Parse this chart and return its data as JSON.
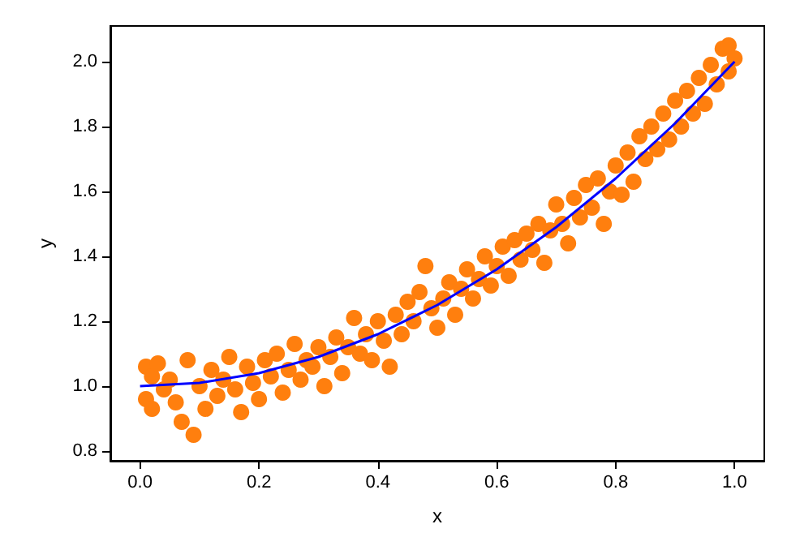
{
  "chart_data": {
    "type": "scatter",
    "xlabel": "x",
    "ylabel": "y",
    "xlim": [
      -0.05,
      1.05
    ],
    "ylim": [
      0.77,
      2.11
    ],
    "xticks": [
      {
        "value": 0,
        "label": "0.0"
      },
      0.2,
      0.4,
      0.6,
      0.8,
      {
        "value": 1,
        "label": "1.0"
      }
    ],
    "yticks": [
      0.8,
      {
        "value": 1,
        "label": "1.0"
      },
      1.2,
      1.4,
      1.6,
      1.8,
      {
        "value": 2,
        "label": "2.0"
      }
    ],
    "grid": false,
    "marker": "circle",
    "series": [
      {
        "color": "#ff7f0e",
        "x": [
          0.01,
          0.01,
          0.02,
          0.02,
          0.03,
          0.04,
          0.05,
          0.06,
          0.07,
          0.08,
          0.09,
          0.1,
          0.11,
          0.12,
          0.13,
          0.14,
          0.15,
          0.16,
          0.17,
          0.18,
          0.19,
          0.2,
          0.21,
          0.22,
          0.23,
          0.24,
          0.25,
          0.26,
          0.27,
          0.28,
          0.29,
          0.3,
          0.31,
          0.32,
          0.33,
          0.34,
          0.35,
          0.36,
          0.37,
          0.38,
          0.39,
          0.4,
          0.41,
          0.42,
          0.43,
          0.44,
          0.45,
          0.46,
          0.47,
          0.48,
          0.49,
          0.5,
          0.51,
          0.52,
          0.53,
          0.54,
          0.55,
          0.56,
          0.57,
          0.58,
          0.59,
          0.6,
          0.61,
          0.62,
          0.63,
          0.64,
          0.65,
          0.66,
          0.67,
          0.68,
          0.69,
          0.7,
          0.71,
          0.72,
          0.73,
          0.74,
          0.75,
          0.76,
          0.77,
          0.78,
          0.79,
          0.8,
          0.81,
          0.82,
          0.83,
          0.84,
          0.85,
          0.86,
          0.87,
          0.88,
          0.89,
          0.9,
          0.91,
          0.92,
          0.93,
          0.94,
          0.95,
          0.96,
          0.97,
          0.98,
          0.99,
          0.99,
          1.0
        ],
        "values": [
          1.06,
          0.96,
          1.03,
          0.93,
          1.07,
          0.99,
          1.02,
          0.95,
          0.89,
          1.08,
          0.85,
          1.0,
          0.93,
          1.05,
          0.97,
          1.02,
          1.09,
          0.99,
          0.92,
          1.06,
          1.01,
          0.96,
          1.08,
          1.03,
          1.1,
          0.98,
          1.05,
          1.13,
          1.02,
          1.08,
          1.06,
          1.12,
          1.0,
          1.09,
          1.15,
          1.04,
          1.12,
          1.21,
          1.1,
          1.16,
          1.08,
          1.2,
          1.14,
          1.06,
          1.22,
          1.16,
          1.26,
          1.2,
          1.29,
          1.37,
          1.24,
          1.18,
          1.27,
          1.32,
          1.22,
          1.3,
          1.36,
          1.27,
          1.33,
          1.4,
          1.31,
          1.37,
          1.43,
          1.34,
          1.45,
          1.39,
          1.47,
          1.42,
          1.5,
          1.38,
          1.48,
          1.56,
          1.5,
          1.44,
          1.58,
          1.52,
          1.62,
          1.55,
          1.64,
          1.5,
          1.6,
          1.68,
          1.59,
          1.72,
          1.63,
          1.77,
          1.7,
          1.8,
          1.73,
          1.84,
          1.76,
          1.88,
          1.8,
          1.91,
          1.84,
          1.95,
          1.87,
          1.99,
          1.93,
          2.04,
          1.97,
          2.05,
          2.01
        ]
      },
      {
        "type": "line",
        "color": "#0000ff",
        "marker": "none",
        "line_style": "solid",
        "x": [
          0,
          0.1,
          0.2,
          0.3,
          0.4,
          0.5,
          0.6,
          0.7,
          0.8,
          0.9,
          1.0
        ],
        "values": [
          1.0,
          1.01,
          1.04,
          1.09,
          1.16,
          1.25,
          1.36,
          1.49,
          1.64,
          1.81,
          2.0
        ]
      }
    ]
  }
}
